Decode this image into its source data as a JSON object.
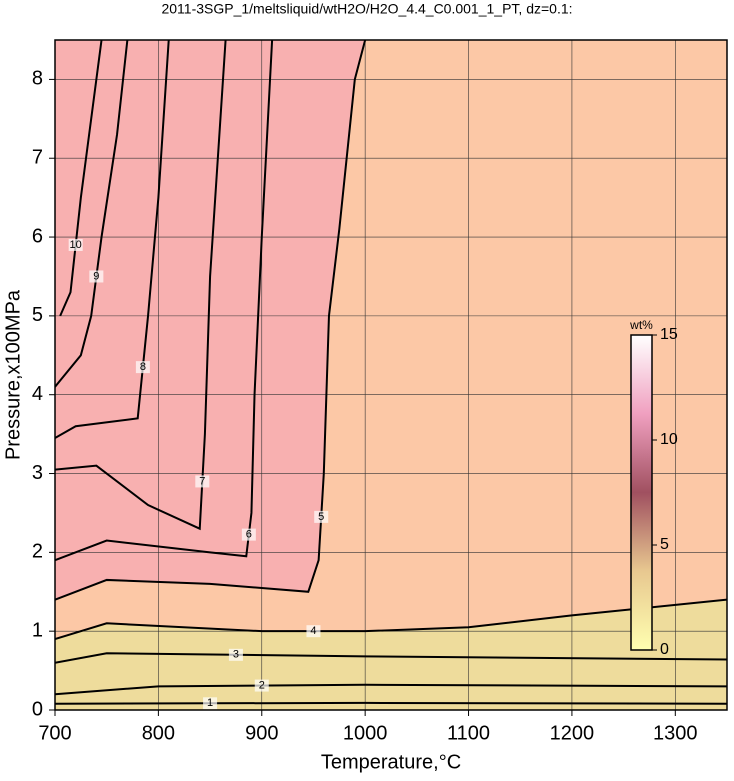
{
  "chart_data": {
    "type": "contour",
    "title": "2011-3SGP_1/meltsliquid/wtH2O/H2O_4.4_C0.001_1_PT, dz=0.1:",
    "x_label": "Temperature,°C",
    "y_label": "Pressure,x100MPa",
    "xlim": [
      700,
      1350
    ],
    "xticks": [
      700,
      800,
      900,
      1000,
      1100,
      1200,
      1300
    ],
    "ylim": [
      0,
      8.5
    ],
    "yticks": [
      0,
      1,
      2,
      3,
      4,
      5,
      6,
      7,
      8
    ],
    "grid": true,
    "contours": [
      {
        "level": 1,
        "x": [
          700,
          1000,
          1350
        ],
        "y": [
          0.08,
          0.09,
          0.08
        ]
      },
      {
        "level": 2,
        "x": [
          700,
          800,
          1000,
          1350
        ],
        "y": [
          0.2,
          0.3,
          0.32,
          0.3
        ]
      },
      {
        "level": 3,
        "x": [
          700,
          750,
          1000,
          1350
        ],
        "y": [
          0.6,
          0.72,
          0.68,
          0.64
        ]
      },
      {
        "level": 4,
        "x": [
          700,
          750,
          900,
          1000,
          1100,
          1200,
          1350
        ],
        "y": [
          0.9,
          1.1,
          1.0,
          1.0,
          1.05,
          1.2,
          1.4
        ]
      },
      {
        "level": 5,
        "x": [
          700,
          750,
          850,
          945,
          955,
          960,
          965,
          975,
          990,
          1000
        ],
        "y": [
          1.4,
          1.65,
          1.6,
          1.5,
          1.9,
          3,
          5,
          6.1,
          8,
          8.5
        ]
      },
      {
        "level": 6,
        "x": [
          700,
          750,
          850,
          885,
          890,
          893,
          900,
          910
        ],
        "y": [
          1.9,
          2.15,
          2.0,
          1.95,
          2.5,
          4,
          6,
          8.5
        ]
      },
      {
        "level": 7,
        "x": [
          700,
          740,
          790,
          840,
          845,
          850,
          860,
          865
        ],
        "y": [
          3.05,
          3.1,
          2.6,
          2.3,
          3.5,
          5.5,
          7.5,
          8.5
        ]
      },
      {
        "level": 8,
        "x": [
          700,
          720,
          780,
          790,
          800,
          810
        ],
        "y": [
          3.45,
          3.6,
          3.7,
          5,
          6.5,
          8.5
        ]
      },
      {
        "level": 9,
        "x": [
          700,
          725,
          735,
          745,
          760,
          770
        ],
        "y": [
          4.1,
          4.5,
          5,
          6,
          7.3,
          8.5
        ]
      },
      {
        "level": 10,
        "x": [
          705,
          715,
          725,
          735,
          745
        ],
        "y": [
          5.0,
          5.3,
          6.5,
          7.5,
          8.5
        ]
      }
    ],
    "colorbar": {
      "label": "wt%",
      "lim": [
        0,
        15
      ],
      "ticks": [
        0,
        5,
        10,
        15
      ],
      "colors": [
        "#ffffb0",
        "#e8c890",
        "#a05060",
        "#f0a0c0",
        "#ffffff"
      ]
    },
    "colors": {
      "background": "#fcc8a6",
      "wet": "#f8b0b0",
      "dry": "#eedc9c"
    }
  }
}
